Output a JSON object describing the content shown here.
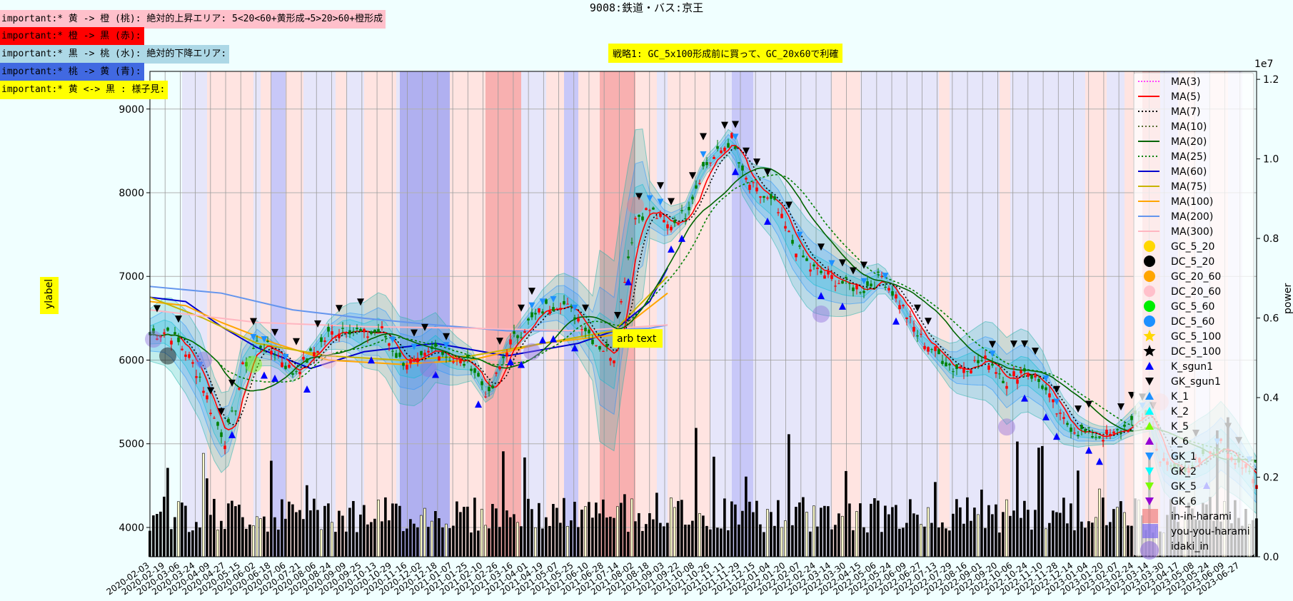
{
  "title": "9008:鉄道・バス:京王",
  "notes": [
    {
      "text": "important:* 黄 -> 橙 (桃): 絶対的上昇エリア: 5<20<60+黄形成→5>20>60+橙形成",
      "bg": "#ffc0cb"
    },
    {
      "text": "important:* 橙 -> 黒 (赤):",
      "bg": "#ff0000"
    },
    {
      "text": "important:* 黒 -> 桃 (水): 絶対的下降エリア:",
      "bg": "#add8e6"
    },
    {
      "text": "important:* 桃 -> 黄 (青):",
      "bg": "#4169e1"
    },
    {
      "text": "important:* 黄 <-> 黒 : 様子見:",
      "bg": "#ffff00"
    }
  ],
  "strategy_text": "戦略1: GC_5x100形成前に買って、GC_20x60で利確",
  "annotation": "arb text",
  "chart_data": {
    "type": "line",
    "ylabel": "ylabel",
    "y2label": "power",
    "y2_exponent": "1e7",
    "ylim": [
      3650,
      9450
    ],
    "y2lim": [
      0,
      12200000
    ],
    "yticks": [
      4000,
      5000,
      6000,
      7000,
      8000,
      9000
    ],
    "y2ticks": [
      0.0,
      0.2,
      0.4,
      0.6,
      0.8,
      1.0,
      1.2
    ],
    "xlim": [
      0,
      310
    ],
    "grid": true,
    "legend_position": "right",
    "close_anchors": [
      [
        0,
        6300
      ],
      [
        5,
        6350
      ],
      [
        10,
        6100
      ],
      [
        14,
        5800
      ],
      [
        18,
        5300
      ],
      [
        21,
        5050
      ],
      [
        24,
        5450
      ],
      [
        26,
        5900
      ],
      [
        30,
        6200
      ],
      [
        35,
        6100
      ],
      [
        40,
        5850
      ],
      [
        45,
        6050
      ],
      [
        50,
        6300
      ],
      [
        55,
        6400
      ],
      [
        60,
        6300
      ],
      [
        65,
        6350
      ],
      [
        70,
        6000
      ],
      [
        75,
        5950
      ],
      [
        80,
        6150
      ],
      [
        85,
        6000
      ],
      [
        90,
        5950
      ],
      [
        95,
        5550
      ],
      [
        100,
        6150
      ],
      [
        105,
        6400
      ],
      [
        110,
        6600
      ],
      [
        115,
        6700
      ],
      [
        120,
        6500
      ],
      [
        125,
        6200
      ],
      [
        130,
        6050
      ],
      [
        133,
        7000
      ],
      [
        136,
        7700
      ],
      [
        140,
        7800
      ],
      [
        145,
        7600
      ],
      [
        150,
        7750
      ],
      [
        155,
        8300
      ],
      [
        160,
        8500
      ],
      [
        163,
        8650
      ],
      [
        166,
        8200
      ],
      [
        170,
        8000
      ],
      [
        175,
        7850
      ],
      [
        180,
        7400
      ],
      [
        185,
        7100
      ],
      [
        190,
        7000
      ],
      [
        195,
        6900
      ],
      [
        200,
        6850
      ],
      [
        205,
        7000
      ],
      [
        210,
        6700
      ],
      [
        215,
        6300
      ],
      [
        220,
        6100
      ],
      [
        225,
        5900
      ],
      [
        230,
        5950
      ],
      [
        235,
        6000
      ],
      [
        240,
        5750
      ],
      [
        245,
        5900
      ],
      [
        250,
        5700
      ],
      [
        255,
        5300
      ],
      [
        260,
        5150
      ],
      [
        265,
        5100
      ],
      [
        270,
        5100
      ],
      [
        275,
        5250
      ],
      [
        280,
        5400
      ],
      [
        283,
        4800
      ],
      [
        287,
        4700
      ],
      [
        292,
        4750
      ],
      [
        297,
        4850
      ],
      [
        300,
        5000
      ],
      [
        305,
        4800
      ],
      [
        310,
        4500
      ]
    ],
    "ma_anchors": {
      "MA(60)": [
        [
          0,
          6750
        ],
        [
          10,
          6700
        ],
        [
          20,
          6400
        ],
        [
          30,
          6150
        ],
        [
          45,
          5900
        ],
        [
          60,
          6100
        ],
        [
          80,
          6200
        ],
        [
          100,
          6050
        ],
        [
          120,
          6200
        ],
        [
          130,
          6350
        ],
        [
          140,
          6700
        ],
        [
          145,
          7100
        ]
      ],
      "MA(100)": [
        [
          0,
          6700
        ],
        [
          10,
          6650
        ],
        [
          20,
          6450
        ],
        [
          35,
          6200
        ],
        [
          50,
          6000
        ],
        [
          70,
          5950
        ],
        [
          90,
          6000
        ],
        [
          110,
          6200
        ],
        [
          130,
          6300
        ],
        [
          145,
          6800
        ]
      ],
      "MA(75)": [
        [
          0,
          6750
        ],
        [
          15,
          6500
        ],
        [
          30,
          6200
        ],
        [
          50,
          6050
        ],
        [
          70,
          6000
        ],
        [
          90,
          6050
        ],
        [
          110,
          6200
        ],
        [
          130,
          6350
        ],
        [
          145,
          7000
        ]
      ],
      "MA(200)": [
        [
          0,
          6880
        ],
        [
          20,
          6800
        ],
        [
          40,
          6600
        ],
        [
          60,
          6500
        ],
        [
          80,
          6420
        ],
        [
          100,
          6350
        ],
        [
          120,
          6350
        ],
        [
          140,
          6380
        ],
        [
          145,
          6420
        ]
      ],
      "MA(300)": [
        [
          0,
          6600
        ],
        [
          30,
          6450
        ],
        [
          60,
          6400
        ],
        [
          90,
          6380
        ],
        [
          120,
          6350
        ],
        [
          145,
          6420
        ]
      ]
    },
    "legend_entries": [
      {
        "label": "MA(3)",
        "color": "#ff44ff",
        "kind": "line",
        "dash": "2,2"
      },
      {
        "label": "MA(5)",
        "color": "#ff0000",
        "kind": "line",
        "dash": ""
      },
      {
        "label": "MA(7)",
        "color": "#000000",
        "kind": "line",
        "dash": "2,3"
      },
      {
        "label": "MA(10)",
        "color": "#556b2f",
        "kind": "line",
        "dash": "2,3"
      },
      {
        "label": "MA(20)",
        "color": "#006400",
        "kind": "line",
        "dash": ""
      },
      {
        "label": "MA(25)",
        "color": "#008000",
        "kind": "line",
        "dash": "2,3"
      },
      {
        "label": "MA(60)",
        "color": "#0000cd",
        "kind": "line",
        "dash": ""
      },
      {
        "label": "MA(75)",
        "color": "#c8b400",
        "kind": "line",
        "dash": ""
      },
      {
        "label": "MA(100)",
        "color": "#ffa500",
        "kind": "line",
        "dash": ""
      },
      {
        "label": "MA(200)",
        "color": "#6495ed",
        "kind": "line",
        "dash": ""
      },
      {
        "label": "MA(300)",
        "color": "#ffb6c1",
        "kind": "line",
        "dash": ""
      },
      {
        "label": "GC_5_20",
        "color": "#ffd700",
        "kind": "circle"
      },
      {
        "label": "DC_5_20",
        "color": "#000000",
        "kind": "circle"
      },
      {
        "label": "GC_20_60",
        "color": "#ffa500",
        "kind": "circle"
      },
      {
        "label": "DC_20_60",
        "color": "#ffc0cb",
        "kind": "circle"
      },
      {
        "label": "GC_5_60",
        "color": "#00ee00",
        "kind": "circle"
      },
      {
        "label": "DC_5_60",
        "color": "#1e90ff",
        "kind": "circle"
      },
      {
        "label": "GC_5_100",
        "color": "#ffd700",
        "kind": "star"
      },
      {
        "label": "DC_5_100",
        "color": "#000000",
        "kind": "star"
      },
      {
        "label": "K_sgun1",
        "color": "#0000ff",
        "kind": "tri-up"
      },
      {
        "label": "GK_sgun1",
        "color": "#000000",
        "kind": "tri-down"
      },
      {
        "label": "K_1",
        "color": "#1e90ff",
        "kind": "tri-up"
      },
      {
        "label": "K_2",
        "color": "#00ffff",
        "kind": "tri-up"
      },
      {
        "label": "K_5",
        "color": "#7cfc00",
        "kind": "tri-up"
      },
      {
        "label": "K_6",
        "color": "#9400d3",
        "kind": "tri-up"
      },
      {
        "label": "GK_1",
        "color": "#1e90ff",
        "kind": "tri-down"
      },
      {
        "label": "GK_2",
        "color": "#00ffff",
        "kind": "tri-down"
      },
      {
        "label": "GK_5",
        "color": "#7cfc00",
        "kind": "tri-down"
      },
      {
        "label": "GK_6",
        "color": "#9400d3",
        "kind": "tri-down"
      },
      {
        "label": "in-in-harami",
        "color": "#f08080",
        "kind": "square"
      },
      {
        "label": "you-you-harami",
        "color": "#7b68ee",
        "kind": "square"
      },
      {
        "label": "idaki_in",
        "color": "#9370db",
        "kind": "circle-big"
      }
    ],
    "xtick_labels": [
      "2020-02-03",
      "2020-02-19",
      "2020-03-06",
      "2020-03-24",
      "2020-04-09",
      "2020-04-27",
      "2020-05-15",
      "2020-06-02",
      "2020-06-18",
      "2020-07-06",
      "2020-07-21",
      "2020-08-06",
      "2020-08-24",
      "2020-09-09",
      "2020-09-25",
      "2020-10-13",
      "2020-10-29",
      "2020-11-16",
      "2020-12-02",
      "2020-12-18",
      "2021-01-07",
      "2021-01-25",
      "2021-02-10",
      "2021-02-26",
      "2021-03-16",
      "2021-04-01",
      "2021-04-19",
      "2021-05-07",
      "2021-05-25",
      "2021-06-10",
      "2021-06-28",
      "2021-07-14",
      "2021-08-02",
      "2021-08-18",
      "2021-09-03",
      "2021-09-22",
      "2021-10-08",
      "2021-10-26",
      "2021-11-11",
      "2021-11-29",
      "2021-12-15",
      "2022-01-04",
      "2022-01-20",
      "2022-02-07",
      "2022-02-24",
      "2022-03-14",
      "2022-03-30",
      "2022-04-15",
      "2022-05-06",
      "2022-05-24",
      "2022-06-09",
      "2022-06-27",
      "2022-07-13",
      "2022-07-29",
      "2022-08-16",
      "2022-09-01",
      "2022-09-20",
      "2022-10-06",
      "2022-10-24",
      "2022-11-10",
      "2022-11-28",
      "2022-12-14",
      "2023-01-04",
      "2023-01-20",
      "2023-02-07",
      "2023-02-24",
      "2023-03-14",
      "2023-03-30",
      "2023-04-17",
      "2023-05-08",
      "2023-05-24",
      "2023-06-09",
      "2023-06-27"
    ],
    "bands": [
      {
        "x0": 9,
        "x1": 16,
        "c": "#e6e6fa"
      },
      {
        "x0": 16,
        "x1": 29,
        "c": "#ffe4e1"
      },
      {
        "x0": 29,
        "x1": 31,
        "c": "#e6e6fa"
      },
      {
        "x0": 31,
        "x1": 34,
        "c": "#ffe4e1"
      },
      {
        "x0": 34,
        "x1": 38,
        "c": "#c8c8f8"
      },
      {
        "x0": 38,
        "x1": 43,
        "c": "#ffe4e1"
      },
      {
        "x0": 43,
        "x1": 52,
        "c": "#e6e6fa"
      },
      {
        "x0": 52,
        "x1": 55,
        "c": "#ffe4e1"
      },
      {
        "x0": 55,
        "x1": 60,
        "c": "#e6e6fa"
      },
      {
        "x0": 60,
        "x1": 69,
        "c": "#ffe4e1"
      },
      {
        "x0": 69,
        "x1": 70,
        "c": "#e6e6fa"
      },
      {
        "x0": 70,
        "x1": 84,
        "c": "#b0b0f0"
      },
      {
        "x0": 84,
        "x1": 86,
        "c": "#ffe4e1"
      },
      {
        "x0": 86,
        "x1": 94,
        "c": "#ffe4e1"
      },
      {
        "x0": 94,
        "x1": 104,
        "c": "#f8b0b0"
      },
      {
        "x0": 104,
        "x1": 111,
        "c": "#e6e6fa"
      },
      {
        "x0": 111,
        "x1": 116,
        "c": "#ffe4e1"
      },
      {
        "x0": 116,
        "x1": 120,
        "c": "#c8c8f8"
      },
      {
        "x0": 120,
        "x1": 126,
        "c": "#ffe4e1"
      },
      {
        "x0": 126,
        "x1": 136,
        "c": "#f8b0b0"
      },
      {
        "x0": 136,
        "x1": 142,
        "c": "#ffe4e1"
      },
      {
        "x0": 142,
        "x1": 145,
        "c": "#e6e6fa"
      },
      {
        "x0": 145,
        "x1": 157,
        "c": "#ffe4e1"
      },
      {
        "x0": 157,
        "x1": 163,
        "c": "#e6e6fa"
      },
      {
        "x0": 163,
        "x1": 169,
        "c": "#c8c8f8"
      },
      {
        "x0": 169,
        "x1": 180,
        "c": "#e6e6fa"
      },
      {
        "x0": 180,
        "x1": 191,
        "c": "#e6e6fa"
      },
      {
        "x0": 191,
        "x1": 195,
        "c": "#ffe4e1"
      },
      {
        "x0": 195,
        "x1": 199,
        "c": "#ffe4e1"
      },
      {
        "x0": 199,
        "x1": 210,
        "c": "#e6e6fa"
      },
      {
        "x0": 210,
        "x1": 215,
        "c": "#e6e6fa"
      },
      {
        "x0": 215,
        "x1": 221,
        "c": "#e6e6fa"
      },
      {
        "x0": 221,
        "x1": 224,
        "c": "#ffe4e1"
      },
      {
        "x0": 224,
        "x1": 230,
        "c": "#e6e6fa"
      },
      {
        "x0": 230,
        "x1": 238,
        "c": "#e6e6fa"
      },
      {
        "x0": 238,
        "x1": 241,
        "c": "#ffe4e1"
      },
      {
        "x0": 241,
        "x1": 247,
        "c": "#e6e6fa"
      },
      {
        "x0": 247,
        "x1": 255,
        "c": "#e6e6fa"
      },
      {
        "x0": 255,
        "x1": 262,
        "c": "#e6e6fa"
      },
      {
        "x0": 262,
        "x1": 268,
        "c": "#ffe4e1"
      },
      {
        "x0": 268,
        "x1": 273,
        "c": "#e6e6fa"
      },
      {
        "x0": 273,
        "x1": 278,
        "c": "#ffe4e1"
      },
      {
        "x0": 278,
        "x1": 283,
        "c": "#f8b0b0"
      },
      {
        "x0": 283,
        "x1": 288,
        "c": "#c8c8f8"
      },
      {
        "x0": 288,
        "x1": 293,
        "c": "#ffe4e1"
      },
      {
        "x0": 293,
        "x1": 297,
        "c": "#e6e6fa"
      },
      {
        "x0": 297,
        "x1": 302,
        "c": "#ffe4e1"
      },
      {
        "x0": 302,
        "x1": 306,
        "c": "#e6e6fa"
      }
    ]
  }
}
